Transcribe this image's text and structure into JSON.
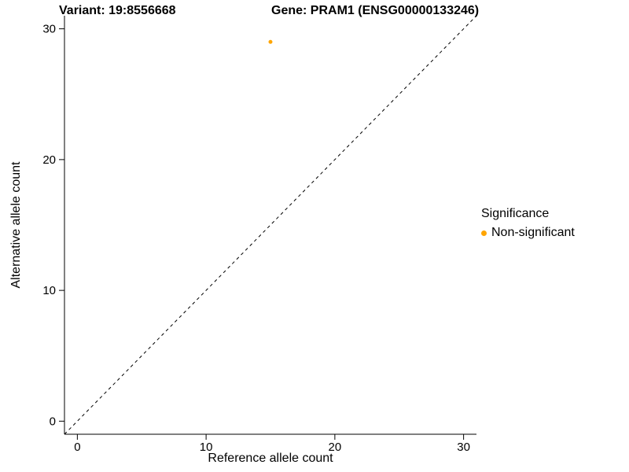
{
  "chart_data": {
    "type": "scatter",
    "title_left": "Variant: 19:8556668",
    "title_right": "Gene: PRAM1 (ENSG00000133246)",
    "xlabel": "Reference allele count",
    "ylabel": "Alternative allele count",
    "xlim": [
      0,
      30
    ],
    "ylim": [
      0,
      30
    ],
    "xticks": [
      0,
      10,
      20,
      30
    ],
    "yticks": [
      0,
      10,
      20,
      30
    ],
    "grid": false,
    "background_color": "#FFFFFF",
    "axis_color": "#000000",
    "point_color": "#FFA500",
    "point_radius": 2.5,
    "points": [
      {
        "x": 15,
        "y": 29,
        "series": "Non-significant"
      }
    ],
    "identity_line": {
      "slope": 1,
      "intercept": 0,
      "style": "dashed",
      "color": "#000000"
    },
    "legend": {
      "title": "Significance",
      "position": "right",
      "entries": [
        {
          "label": "Non-significant",
          "color": "#FFA500"
        }
      ]
    }
  }
}
